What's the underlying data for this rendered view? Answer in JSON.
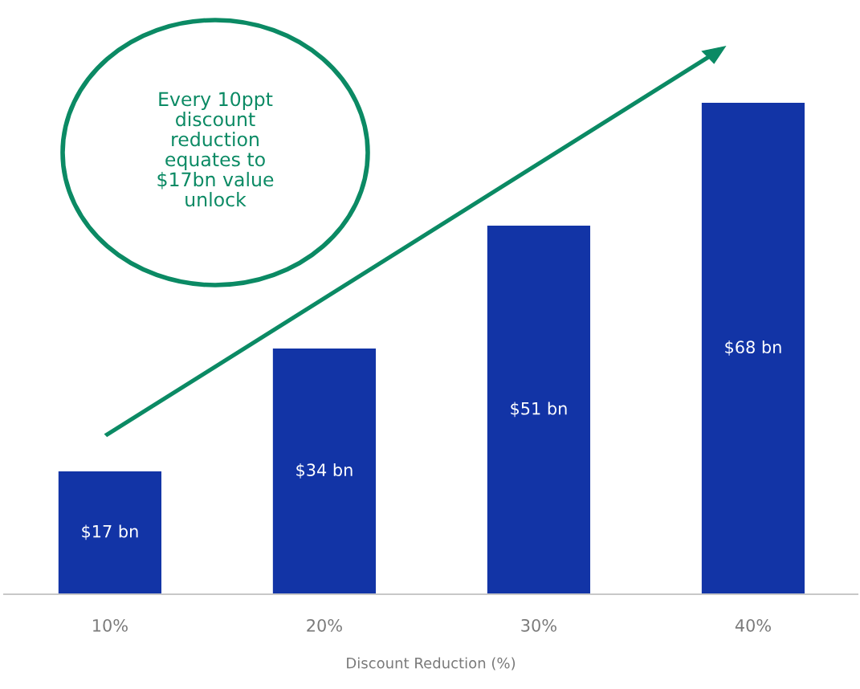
{
  "chart_data": {
    "type": "bar",
    "categories": [
      "10%",
      "20%",
      "30%",
      "40%"
    ],
    "values": [
      17,
      34,
      51,
      68
    ],
    "value_labels": [
      "$17 bn",
      "$34 bn",
      "$51 bn",
      "$68 bn"
    ],
    "color": "#1234a6",
    "xlabel": "Discount Reduction (%)",
    "tick_labels": "x",
    "grid": false,
    "legend": false,
    "annotations": [
      "Every 10ppt\ndiscount\nreduction\nequates to\n$17bn value\nunlock"
    ]
  }
}
